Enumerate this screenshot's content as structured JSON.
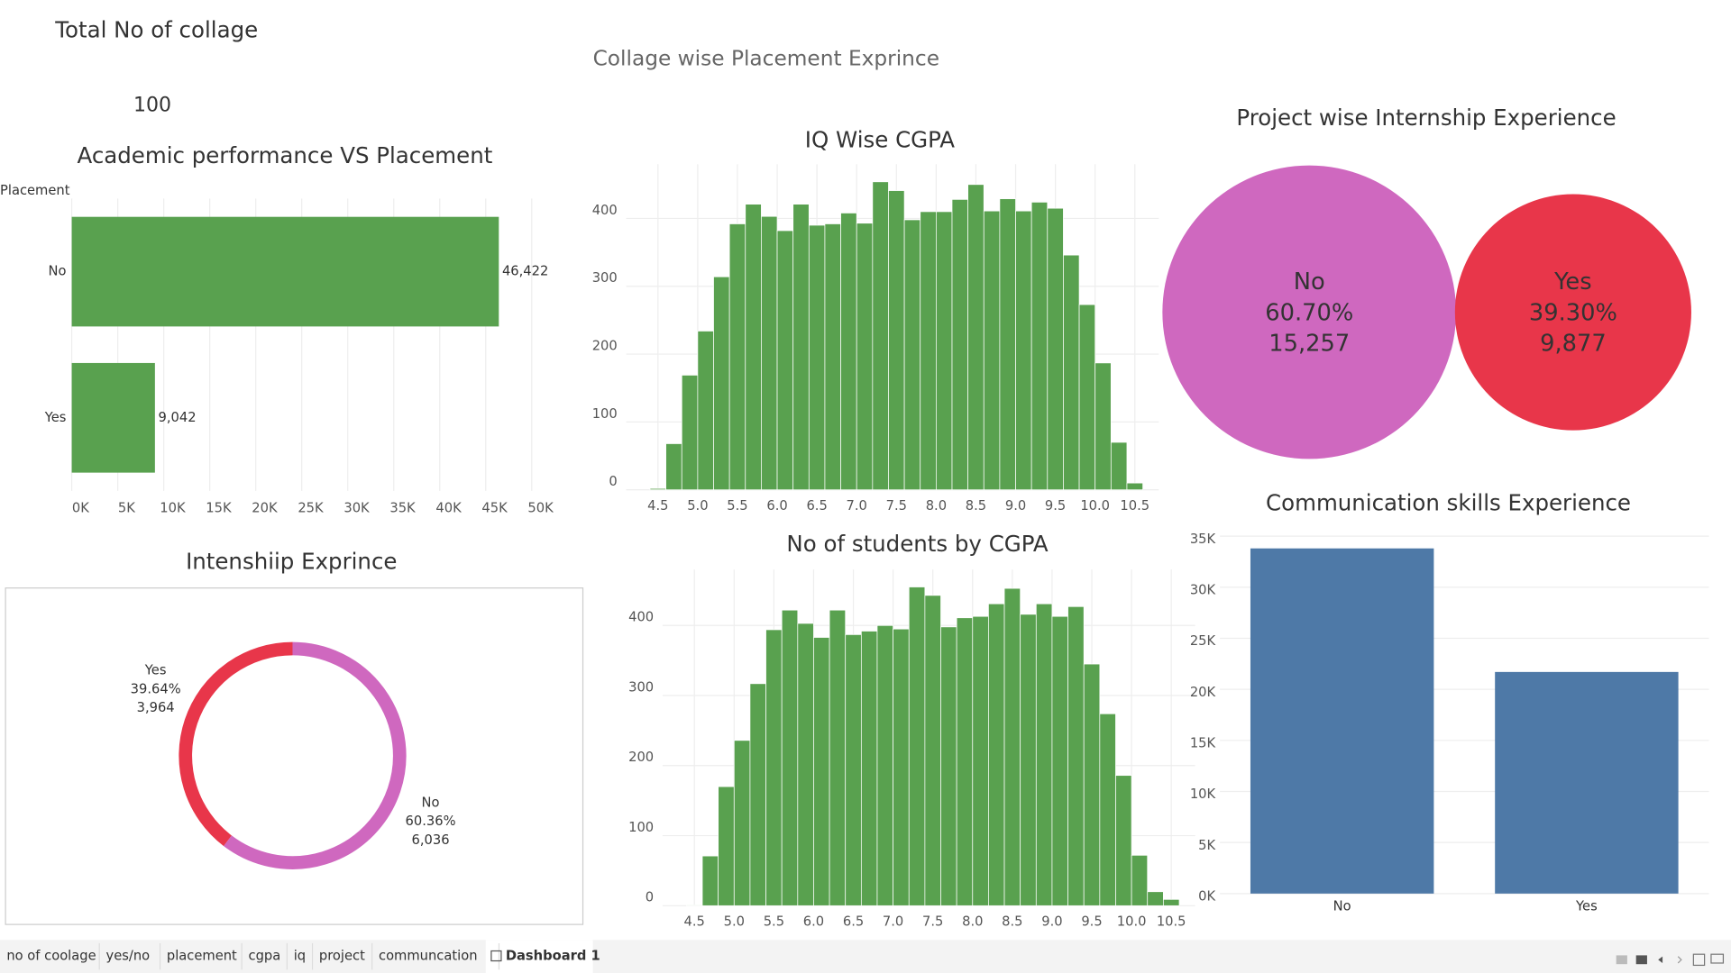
{
  "header": {
    "kpi_title": "Total No of collage",
    "kpi_value": 100,
    "dashboard_title": "Collage wise Placement Exprince"
  },
  "tabs": [
    "no of coolage",
    "yes/no",
    "placement",
    "cgpa",
    "iq",
    "project",
    "communcation",
    "Dashboard 1"
  ],
  "chart_data": [
    {
      "type": "hbar",
      "title": "Academic performance VS Placement",
      "y_label": "Placement",
      "categories": [
        "No",
        "Yes"
      ],
      "values": [
        46422,
        9042
      ],
      "value_labels": [
        "46,422",
        "9,042"
      ],
      "color": "#59a14f",
      "xlim": [
        0,
        54000
      ],
      "xticks": [
        {
          "value": 0,
          "label": "0K"
        },
        {
          "value": 5000,
          "label": "5K"
        },
        {
          "value": 10000,
          "label": "10K"
        },
        {
          "value": 15000,
          "label": "15K"
        },
        {
          "value": 20000,
          "label": "20K"
        },
        {
          "value": 25000,
          "label": "25K"
        },
        {
          "value": 30000,
          "label": "30K"
        },
        {
          "value": 35000,
          "label": "35K"
        },
        {
          "value": 40000,
          "label": "40K"
        },
        {
          "value": 45000,
          "label": "45K"
        },
        {
          "value": 50000,
          "label": "50K"
        }
      ],
      "grid": true
    },
    {
      "type": "histogram",
      "title": "IQ Wise CGPA",
      "color": "#59a14f",
      "bins": [
        4.4,
        4.6,
        4.8,
        5,
        5.2,
        5.4,
        5.6,
        5.8,
        6,
        6.2,
        6.4,
        6.6,
        6.8,
        7,
        7.2,
        7.4,
        7.6,
        7.8,
        8,
        8.2,
        8.4,
        8.6,
        8.8,
        9,
        9.2,
        9.4,
        9.6,
        9.8,
        10,
        10.2,
        10.4,
        10.6
      ],
      "values": [
        2,
        68,
        169,
        234,
        314,
        392,
        421,
        403,
        382,
        421,
        390,
        392,
        408,
        393,
        454,
        441,
        398,
        410,
        410,
        428,
        450,
        411,
        429,
        411,
        424,
        415,
        346,
        273,
        187,
        70,
        10
      ],
      "xlim": [
        4.1,
        10.8
      ],
      "ylim": [
        0,
        480
      ],
      "xticks": [
        4.5,
        {
          "value": 5,
          "label": "5.0"
        },
        5.5,
        {
          "value": 6,
          "label": "6.0"
        },
        6.5,
        {
          "value": 7,
          "label": "7.0"
        },
        7.5,
        {
          "value": 8,
          "label": "8.0"
        },
        8.5,
        {
          "value": 9,
          "label": "9.0"
        },
        9.5,
        {
          "value": 10,
          "label": "10.0"
        },
        10.5
      ],
      "yticks": [
        0,
        100,
        200,
        300,
        400
      ],
      "grid": true
    },
    {
      "type": "histogram",
      "title": "No of students by CGPA",
      "color": "#59a14f",
      "bins": [
        4.4,
        4.6,
        4.8,
        5,
        5.2,
        5.4,
        5.6,
        5.8,
        6,
        6.2,
        6.4,
        6.6,
        6.8,
        7,
        7.2,
        7.4,
        7.6,
        7.8,
        8,
        8.2,
        8.4,
        8.6,
        8.8,
        9,
        9.2,
        9.4,
        9.6,
        9.8,
        10,
        10.2,
        10.4,
        10.6
      ],
      "values": [
        1,
        71,
        170,
        236,
        317,
        394,
        422,
        403,
        383,
        422,
        387,
        392,
        400,
        395,
        455,
        443,
        398,
        411,
        413,
        431,
        453,
        416,
        431,
        413,
        427,
        345,
        274,
        186,
        72,
        20,
        9
      ],
      "xlim": [
        4.1,
        10.8
      ],
      "ylim": [
        0,
        480
      ],
      "xticks": [
        4.5,
        {
          "value": 5,
          "label": "5.0"
        },
        5.5,
        {
          "value": 6,
          "label": "6.0"
        },
        6.5,
        {
          "value": 7,
          "label": "7.0"
        },
        7.5,
        {
          "value": 8,
          "label": "8.0"
        },
        8.5,
        {
          "value": 9,
          "label": "9.0"
        },
        9.5,
        {
          "value": 10,
          "label": "10.0"
        },
        10.5
      ],
      "yticks": [
        0,
        100,
        200,
        300,
        400
      ],
      "grid": true
    },
    {
      "type": "bubble",
      "title": "Project wise Internship Experience",
      "categories": [
        "No",
        "Yes"
      ],
      "values": [
        15257,
        9877
      ],
      "value_labels": [
        "15,257",
        "9,877"
      ],
      "percents": [
        60.7,
        39.3
      ],
      "percent_labels": [
        "60.70%",
        "39.30%"
      ],
      "colors": [
        "#cf68bf",
        "#e8364a"
      ]
    },
    {
      "type": "donut",
      "title": "Intenshiip Exprince",
      "categories": [
        "Yes",
        "No"
      ],
      "values": [
        3964,
        6036
      ],
      "value_labels": [
        "3,964",
        "6,036"
      ],
      "percents": [
        39.64,
        60.36
      ],
      "percent_labels": [
        "39.64%",
        "60.36%"
      ],
      "colors": [
        "#e8364a",
        "#cf68bf"
      ]
    },
    {
      "type": "bar",
      "title": "Communication skills Experience",
      "categories": [
        "No",
        "Yes"
      ],
      "values": [
        33800,
        21700
      ],
      "color": "#4e79a7",
      "ylim": [
        0,
        35000
      ],
      "yticks": [
        {
          "value": 0,
          "label": "0K"
        },
        {
          "value": 5000,
          "label": "5K"
        },
        {
          "value": 10000,
          "label": "10K"
        },
        {
          "value": 15000,
          "label": "15K"
        },
        {
          "value": 20000,
          "label": "20K"
        },
        {
          "value": 25000,
          "label": "25K"
        },
        {
          "value": 30000,
          "label": "30K"
        },
        {
          "value": 35000,
          "label": "35K"
        }
      ],
      "grid": true
    }
  ]
}
